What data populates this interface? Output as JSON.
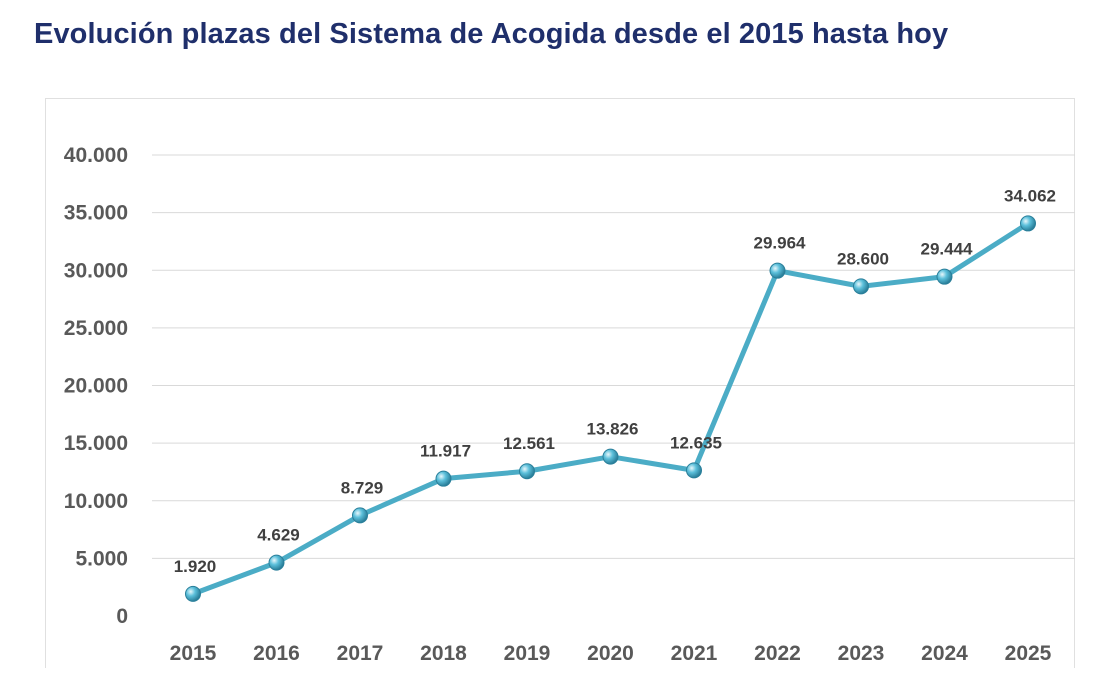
{
  "title": "Evolución plazas del Sistema de Acogida desde el 2015 hasta hoy",
  "colors": {
    "title": "#1f2f6b",
    "line": "#4bacc6",
    "marker": "#3b9bb8",
    "grid": "#d9d9d9",
    "text": "#595959"
  },
  "chart_data": {
    "type": "line",
    "title": "Evolución plazas del Sistema de Acogida desde el 2015 hasta hoy",
    "xlabel": "",
    "ylabel": "",
    "categories": [
      "2015",
      "2016",
      "2017",
      "2018",
      "2019",
      "2020",
      "2021",
      "2022",
      "2023",
      "2024",
      "2025"
    ],
    "values": [
      1920,
      4629,
      8729,
      11917,
      12561,
      13826,
      12635,
      29964,
      28600,
      29444,
      34062
    ],
    "data_labels": [
      "1.920",
      "4.629",
      "8.729",
      "11.917",
      "12.561",
      "13.826",
      "12.635",
      "29.964",
      "28.600",
      "29.444",
      "34.062"
    ],
    "ylim": [
      0,
      40000
    ],
    "yticks": [
      0,
      5000,
      10000,
      15000,
      20000,
      25000,
      30000,
      35000,
      40000
    ],
    "ytick_labels": [
      "0",
      "5.000",
      "10.000",
      "15.000",
      "20.000",
      "25.000",
      "30.000",
      "35.000",
      "40.000"
    ],
    "grid": true,
    "legend": "none"
  }
}
